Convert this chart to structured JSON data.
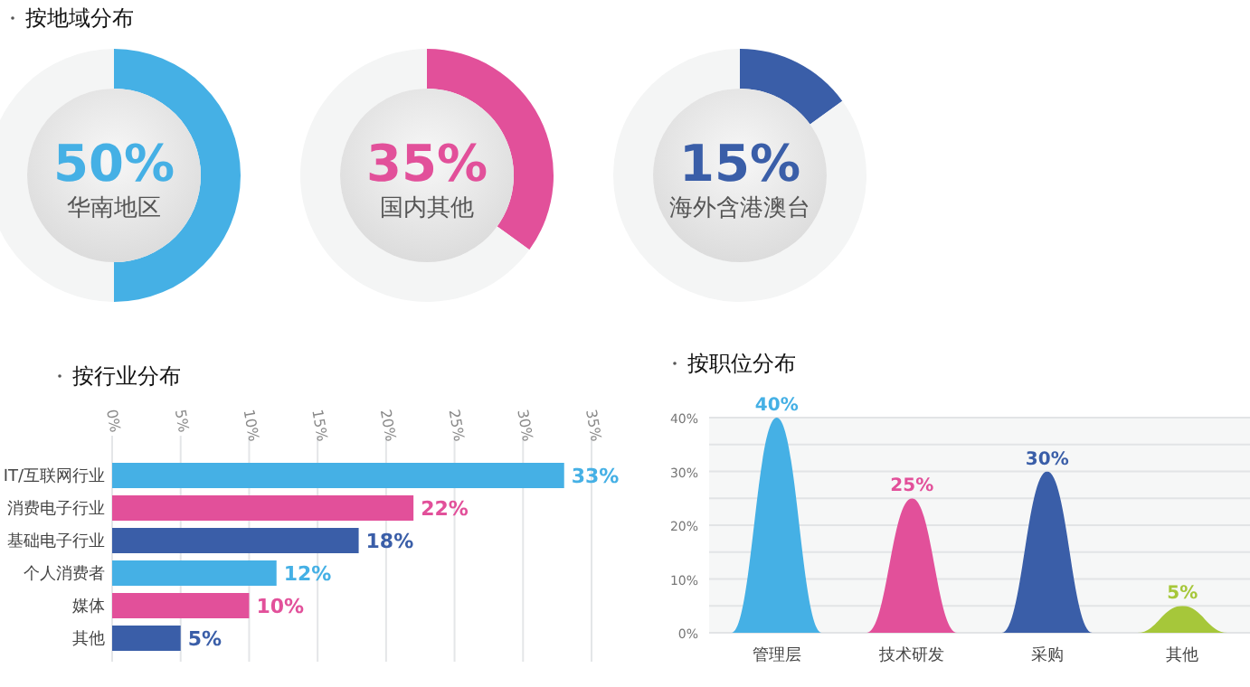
{
  "chart_data": [
    {
      "type": "donut",
      "title": "按地域分布",
      "categories": [
        "华南地区",
        null
      ],
      "values": [
        50,
        50
      ],
      "colors": [
        "#45b0e5",
        "#f4f5f5"
      ],
      "value_labels": [
        "50%",
        null
      ]
    },
    {
      "type": "donut",
      "categories": [
        "国内其他",
        null
      ],
      "values": [
        35,
        65
      ],
      "colors": [
        "#e2509a",
        "#f4f5f5"
      ],
      "value_labels": [
        "35%",
        null
      ]
    },
    {
      "type": "donut",
      "categories": [
        "海外含港澳台",
        null
      ],
      "values": [
        15,
        85
      ],
      "colors": [
        "#3a5ea8",
        "#f4f5f5"
      ],
      "value_labels": [
        "15%",
        null
      ]
    },
    {
      "type": "bar",
      "orientation": "horizontal",
      "title": "按行业分布",
      "categories": [
        "IT/互联网行业",
        "消费电子行业",
        "基础电子行业",
        "个人消费者",
        "媒体",
        "其他"
      ],
      "values": [
        33,
        22,
        18,
        12,
        10,
        5
      ],
      "colors": [
        "#45b0e5",
        "#e2509a",
        "#3a5ea8",
        "#45b0e5",
        "#e2509a",
        "#3a5ea8"
      ],
      "value_labels": [
        "33%",
        "22%",
        "18%",
        "12%",
        "10%",
        "5%"
      ],
      "xlim": [
        0,
        35
      ],
      "xticks": [
        {
          "value": 0,
          "label": "0%"
        },
        {
          "value": 5,
          "label": "5%"
        },
        {
          "value": 10,
          "label": "10%"
        },
        {
          "value": 15,
          "label": "15%"
        },
        {
          "value": 20,
          "label": "20%"
        },
        {
          "value": 25,
          "label": "25%"
        },
        {
          "value": 30,
          "label": "30%"
        },
        {
          "value": 35,
          "label": "35%"
        }
      ],
      "grid": "x"
    },
    {
      "type": "bar",
      "title": "按职位分布",
      "categories": [
        "管理层",
        "技术研发",
        "采购",
        "其他"
      ],
      "values": [
        40,
        25,
        30,
        5
      ],
      "colors": [
        "#45b0e5",
        "#e2509a",
        "#3a5ea8",
        "#a6c73a"
      ],
      "value_labels": [
        "40%",
        "25%",
        "30%",
        "5%"
      ],
      "ylim": [
        0,
        40
      ],
      "yticks": [
        {
          "value": 0,
          "label": "0%"
        },
        {
          "value": 5,
          "label": null
        },
        {
          "value": 10,
          "label": "10%"
        },
        {
          "value": 15,
          "label": null
        },
        {
          "value": 20,
          "label": "20%"
        },
        {
          "value": 25,
          "label": null
        },
        {
          "value": 30,
          "label": "30%"
        },
        {
          "value": 35,
          "label": null
        },
        {
          "value": 40,
          "label": "40%"
        }
      ],
      "grid": "y"
    }
  ]
}
